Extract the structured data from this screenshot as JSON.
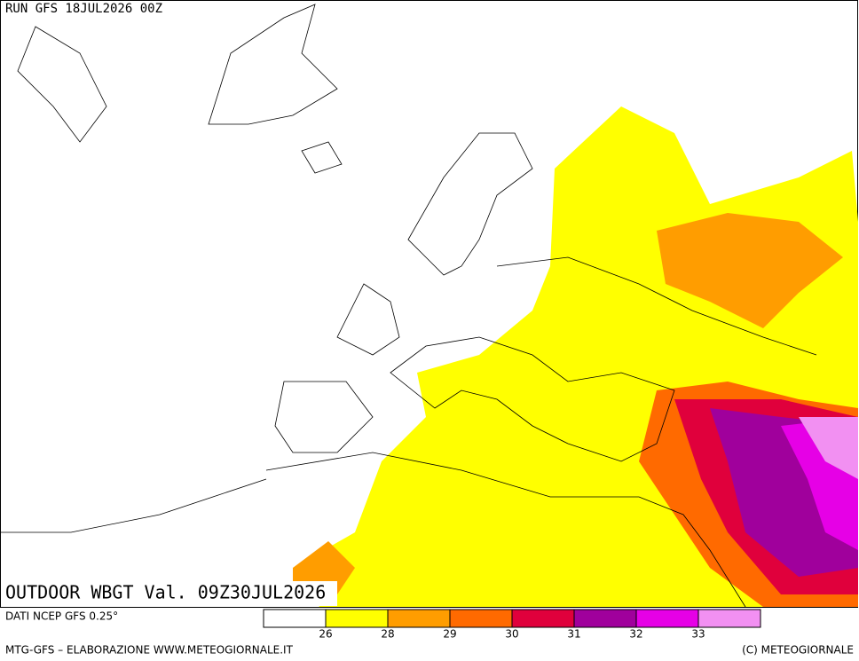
{
  "header": {
    "run": "RUN GFS 18JUL2026 00Z",
    "title": "OUTDOOR WBGT Val. 09Z30JUL2026"
  },
  "legend": {
    "source": "DATI NCEP GFS 0.25°",
    "colors": [
      "#ffffff",
      "#ffff00",
      "#ff9d00",
      "#ff6a00",
      "#e0003c",
      "#a0009c",
      "#e600e6",
      "#f290f2"
    ],
    "labels": [
      26,
      28,
      29,
      30,
      31,
      32,
      33
    ]
  },
  "footer": {
    "left": "MTG-GFS – ELABORAZIONE WWW.METEOGIORNALE.IT",
    "right": "(C) METEOGIORNALE"
  }
}
